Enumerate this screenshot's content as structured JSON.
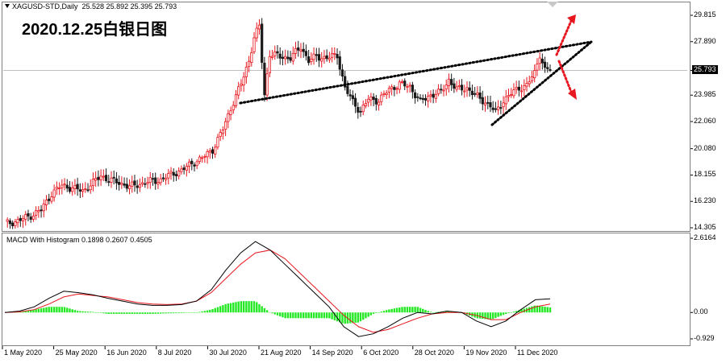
{
  "header": {
    "symbol_text": "XAGUSD-STD,Daily",
    "ohlc_text": "25.528 25.892 25.395 25.793"
  },
  "annotation": {
    "title": "2020.12.25白银日图"
  },
  "macd": {
    "label_text": "MACD With Histogram",
    "values_text": "0.1898 0.2607 0.4505"
  },
  "colors": {
    "bull_candle": "#e8161e",
    "bear_candle": "#1a1a1a",
    "macd_line": "#000000",
    "signal_line": "#e8161e",
    "histogram": "#23e823",
    "trendline": "#000000",
    "arrow": "#e8161e"
  },
  "chart_data": [
    {
      "type": "candlestick",
      "title": "XAGUSD-STD,Daily",
      "ylim": [
        14.305,
        29.815
      ],
      "yticks": [
        "29.815",
        "27.890",
        "25.793",
        "23.985",
        "22.060",
        "20.080",
        "18.155",
        "16.230",
        "14.305"
      ],
      "last_price": "25.793",
      "xticks": [
        "1 May 2020",
        "25 May 2020",
        "16 Jun 2020",
        "8 Jul 2020",
        "30 Jul 2020",
        "21 Aug 2020",
        "14 Sep 2020",
        "6 Oct 2020",
        "28 Oct 2020",
        "19 Nov 2020",
        "11 Dec 2020"
      ],
      "ohlc_note": "Daily candles, silver price path",
      "path_points": [
        [
          0,
          14.6
        ],
        [
          5,
          14.8
        ],
        [
          10,
          15.2
        ],
        [
          14,
          15.6
        ],
        [
          18,
          16.8
        ],
        [
          22,
          17.4
        ],
        [
          26,
          17.2
        ],
        [
          30,
          17.0
        ],
        [
          34,
          17.6
        ],
        [
          37,
          18.1
        ],
        [
          40,
          17.8
        ],
        [
          44,
          17.6
        ],
        [
          48,
          17.3
        ],
        [
          52,
          17.5
        ],
        [
          56,
          17.7
        ],
        [
          60,
          17.8
        ],
        [
          64,
          18.2
        ],
        [
          68,
          18.5
        ],
        [
          72,
          19.0
        ],
        [
          76,
          19.4
        ],
        [
          80,
          20.0
        ],
        [
          84,
          21.5
        ],
        [
          88,
          23.5
        ],
        [
          91,
          24.8
        ],
        [
          94,
          26.5
        ],
        [
          96,
          28.2
        ],
        [
          98,
          29.0
        ],
        [
          100,
          24.0
        ],
        [
          102,
          27.0
        ],
        [
          106,
          26.8
        ],
        [
          110,
          26.7
        ],
        [
          114,
          27.5
        ],
        [
          117,
          26.5
        ],
        [
          120,
          26.8
        ],
        [
          124,
          26.7
        ],
        [
          128,
          26.9
        ],
        [
          131,
          24.5
        ],
        [
          134,
          23.5
        ],
        [
          137,
          22.8
        ],
        [
          140,
          23.7
        ],
        [
          144,
          23.6
        ],
        [
          148,
          24.4
        ],
        [
          152,
          24.8
        ],
        [
          156,
          24.6
        ],
        [
          160,
          23.5
        ],
        [
          164,
          24.0
        ],
        [
          168,
          24.2
        ],
        [
          171,
          25.1
        ],
        [
          174,
          24.4
        ],
        [
          178,
          24.5
        ],
        [
          181,
          24.0
        ],
        [
          184,
          23.6
        ],
        [
          187,
          23.2
        ],
        [
          189,
          22.7
        ],
        [
          192,
          23.6
        ],
        [
          195,
          24.1
        ],
        [
          198,
          24.5
        ],
        [
          201,
          24.7
        ],
        [
          204,
          25.6
        ],
        [
          206,
          27.0
        ],
        [
          208,
          25.8
        ],
        [
          210,
          25.9
        ]
      ],
      "trendlines": "ascending triangle / wedge with arrows up and down"
    },
    {
      "type": "line",
      "title": "MACD With Histogram",
      "ylim": [
        -0.929,
        2.6164
      ],
      "yticks": [
        "2.6164",
        "0.00",
        "-0.929"
      ],
      "series": [
        {
          "name": "MACD",
          "values": [
            0.0,
            0.05,
            0.2,
            0.5,
            0.75,
            0.7,
            0.62,
            0.5,
            0.4,
            0.3,
            0.25,
            0.25,
            0.28,
            0.4,
            0.8,
            1.5,
            2.1,
            2.5,
            2.2,
            1.7,
            1.2,
            0.7,
            0.2,
            -0.5,
            -0.85,
            -0.75,
            -0.5,
            -0.2,
            0.0,
            -0.05,
            0.05,
            0.0,
            -0.3,
            -0.5,
            -0.3,
            0.1,
            0.45,
            0.48
          ]
        },
        {
          "name": "Signal",
          "values": [
            0.0,
            0.02,
            0.1,
            0.3,
            0.55,
            0.65,
            0.6,
            0.55,
            0.45,
            0.35,
            0.3,
            0.28,
            0.3,
            0.4,
            0.7,
            1.2,
            1.7,
            2.1,
            2.2,
            1.9,
            1.4,
            0.9,
            0.4,
            -0.1,
            -0.5,
            -0.7,
            -0.6,
            -0.4,
            -0.2,
            -0.05,
            0.0,
            0.0,
            -0.1,
            -0.25,
            -0.25,
            0.0,
            0.2,
            0.3
          ]
        }
      ]
    }
  ]
}
